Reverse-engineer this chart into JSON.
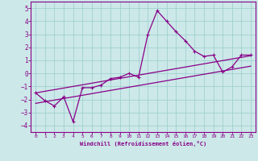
{
  "xlabel": "Windchill (Refroidissement éolien,°C)",
  "ylabel": "",
  "bg_color": "#cce8e8",
  "grid_color": "#99cccc",
  "line_color": "#880088",
  "xlim": [
    -0.5,
    23.5
  ],
  "ylim": [
    -4.5,
    5.5
  ],
  "xticks": [
    0,
    1,
    2,
    3,
    4,
    5,
    6,
    7,
    8,
    9,
    10,
    11,
    12,
    13,
    14,
    15,
    16,
    17,
    18,
    19,
    20,
    21,
    22,
    23
  ],
  "yticks": [
    -4,
    -3,
    -2,
    -1,
    0,
    1,
    2,
    3,
    4,
    5
  ],
  "main_x": [
    0,
    1,
    2,
    3,
    4,
    5,
    6,
    7,
    8,
    9,
    10,
    11,
    12,
    13,
    14,
    15,
    16,
    17,
    18,
    19,
    20,
    21,
    22,
    23
  ],
  "main_y": [
    -1.5,
    -2.1,
    -2.5,
    -1.8,
    -3.7,
    -1.1,
    -1.1,
    -0.9,
    -0.4,
    -0.3,
    0.0,
    -0.3,
    3.0,
    4.8,
    4.0,
    3.2,
    2.5,
    1.7,
    1.3,
    1.4,
    0.1,
    0.5,
    1.4,
    1.4
  ],
  "line2_x": [
    0,
    23
  ],
  "line2_y": [
    -1.5,
    1.35
  ],
  "line3_x": [
    0,
    23
  ],
  "line3_y": [
    -2.3,
    0.55
  ]
}
